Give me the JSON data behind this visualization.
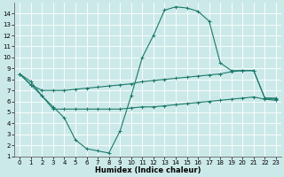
{
  "xlabel": "Humidex (Indice chaleur)",
  "xlim": [
    -0.5,
    23.5
  ],
  "ylim": [
    1,
    15
  ],
  "xticks": [
    0,
    1,
    2,
    3,
    4,
    5,
    6,
    7,
    8,
    9,
    10,
    11,
    12,
    13,
    14,
    15,
    16,
    17,
    18,
    19,
    20,
    21,
    22,
    23
  ],
  "yticks": [
    1,
    2,
    3,
    4,
    5,
    6,
    7,
    8,
    9,
    10,
    11,
    12,
    13,
    14
  ],
  "bg_color": "#cce9e9",
  "grid_color": "#ffffff",
  "line_color": "#1a7a6a",
  "line1_x": [
    0,
    1,
    2,
    3,
    4,
    5,
    6,
    7,
    8,
    9,
    10,
    11,
    12,
    13,
    14,
    15,
    16,
    17,
    18,
    19,
    20,
    21,
    22,
    23
  ],
  "line1_y": [
    8.5,
    7.8,
    6.5,
    5.5,
    4.5,
    2.5,
    1.7,
    1.5,
    1.3,
    3.3,
    6.5,
    10.0,
    12.0,
    14.3,
    14.6,
    14.5,
    14.2,
    13.3,
    9.5,
    8.8,
    8.8,
    8.8,
    6.3,
    6.3
  ],
  "line2_x": [
    0,
    1,
    2,
    3,
    4,
    5,
    6,
    7,
    8,
    9,
    10,
    11,
    12,
    13,
    14,
    15,
    16,
    17,
    18,
    19,
    20,
    21,
    22,
    23
  ],
  "line2_y": [
    8.5,
    7.5,
    7.0,
    7.0,
    7.0,
    7.1,
    7.2,
    7.3,
    7.4,
    7.5,
    7.6,
    7.8,
    7.9,
    8.0,
    8.1,
    8.2,
    8.3,
    8.4,
    8.5,
    8.7,
    8.8,
    8.8,
    6.3,
    6.2
  ],
  "line3_x": [
    0,
    1,
    2,
    3,
    4,
    5,
    6,
    7,
    8,
    9,
    10,
    11,
    12,
    13,
    14,
    15,
    16,
    17,
    18,
    19,
    20,
    21,
    22,
    23
  ],
  "line3_y": [
    8.5,
    7.5,
    6.5,
    5.3,
    5.3,
    5.3,
    5.3,
    5.3,
    5.3,
    5.3,
    5.4,
    5.5,
    5.5,
    5.6,
    5.7,
    5.8,
    5.9,
    6.0,
    6.1,
    6.2,
    6.3,
    6.4,
    6.2,
    6.1
  ]
}
